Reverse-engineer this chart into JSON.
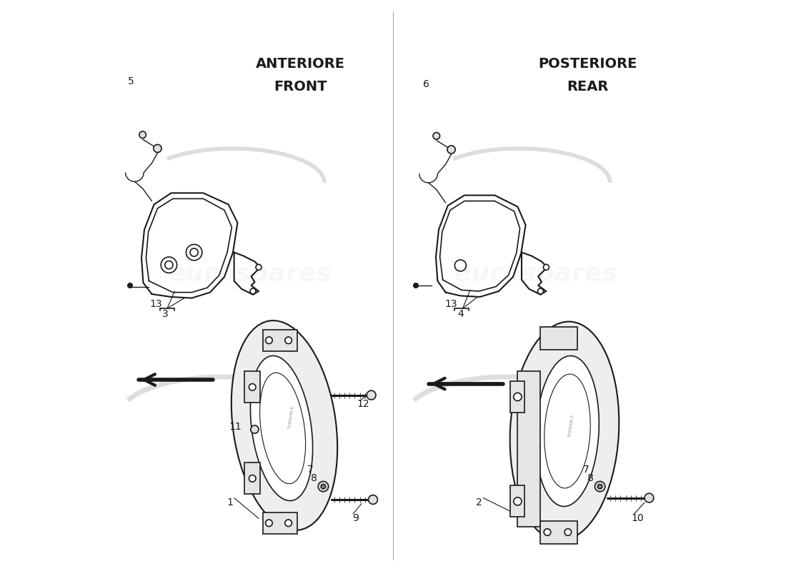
{
  "bg_color": "#ffffff",
  "watermark_text": "eurospares",
  "watermark_alpha": 0.15,
  "left_label_it": "ANTERIORE",
  "left_label_en": "FRONT",
  "right_label_it": "POSTERIORE",
  "right_label_en": "REAR",
  "label_fontsize": 14,
  "line_color": "#1a1a1a",
  "line_width": 1.2
}
